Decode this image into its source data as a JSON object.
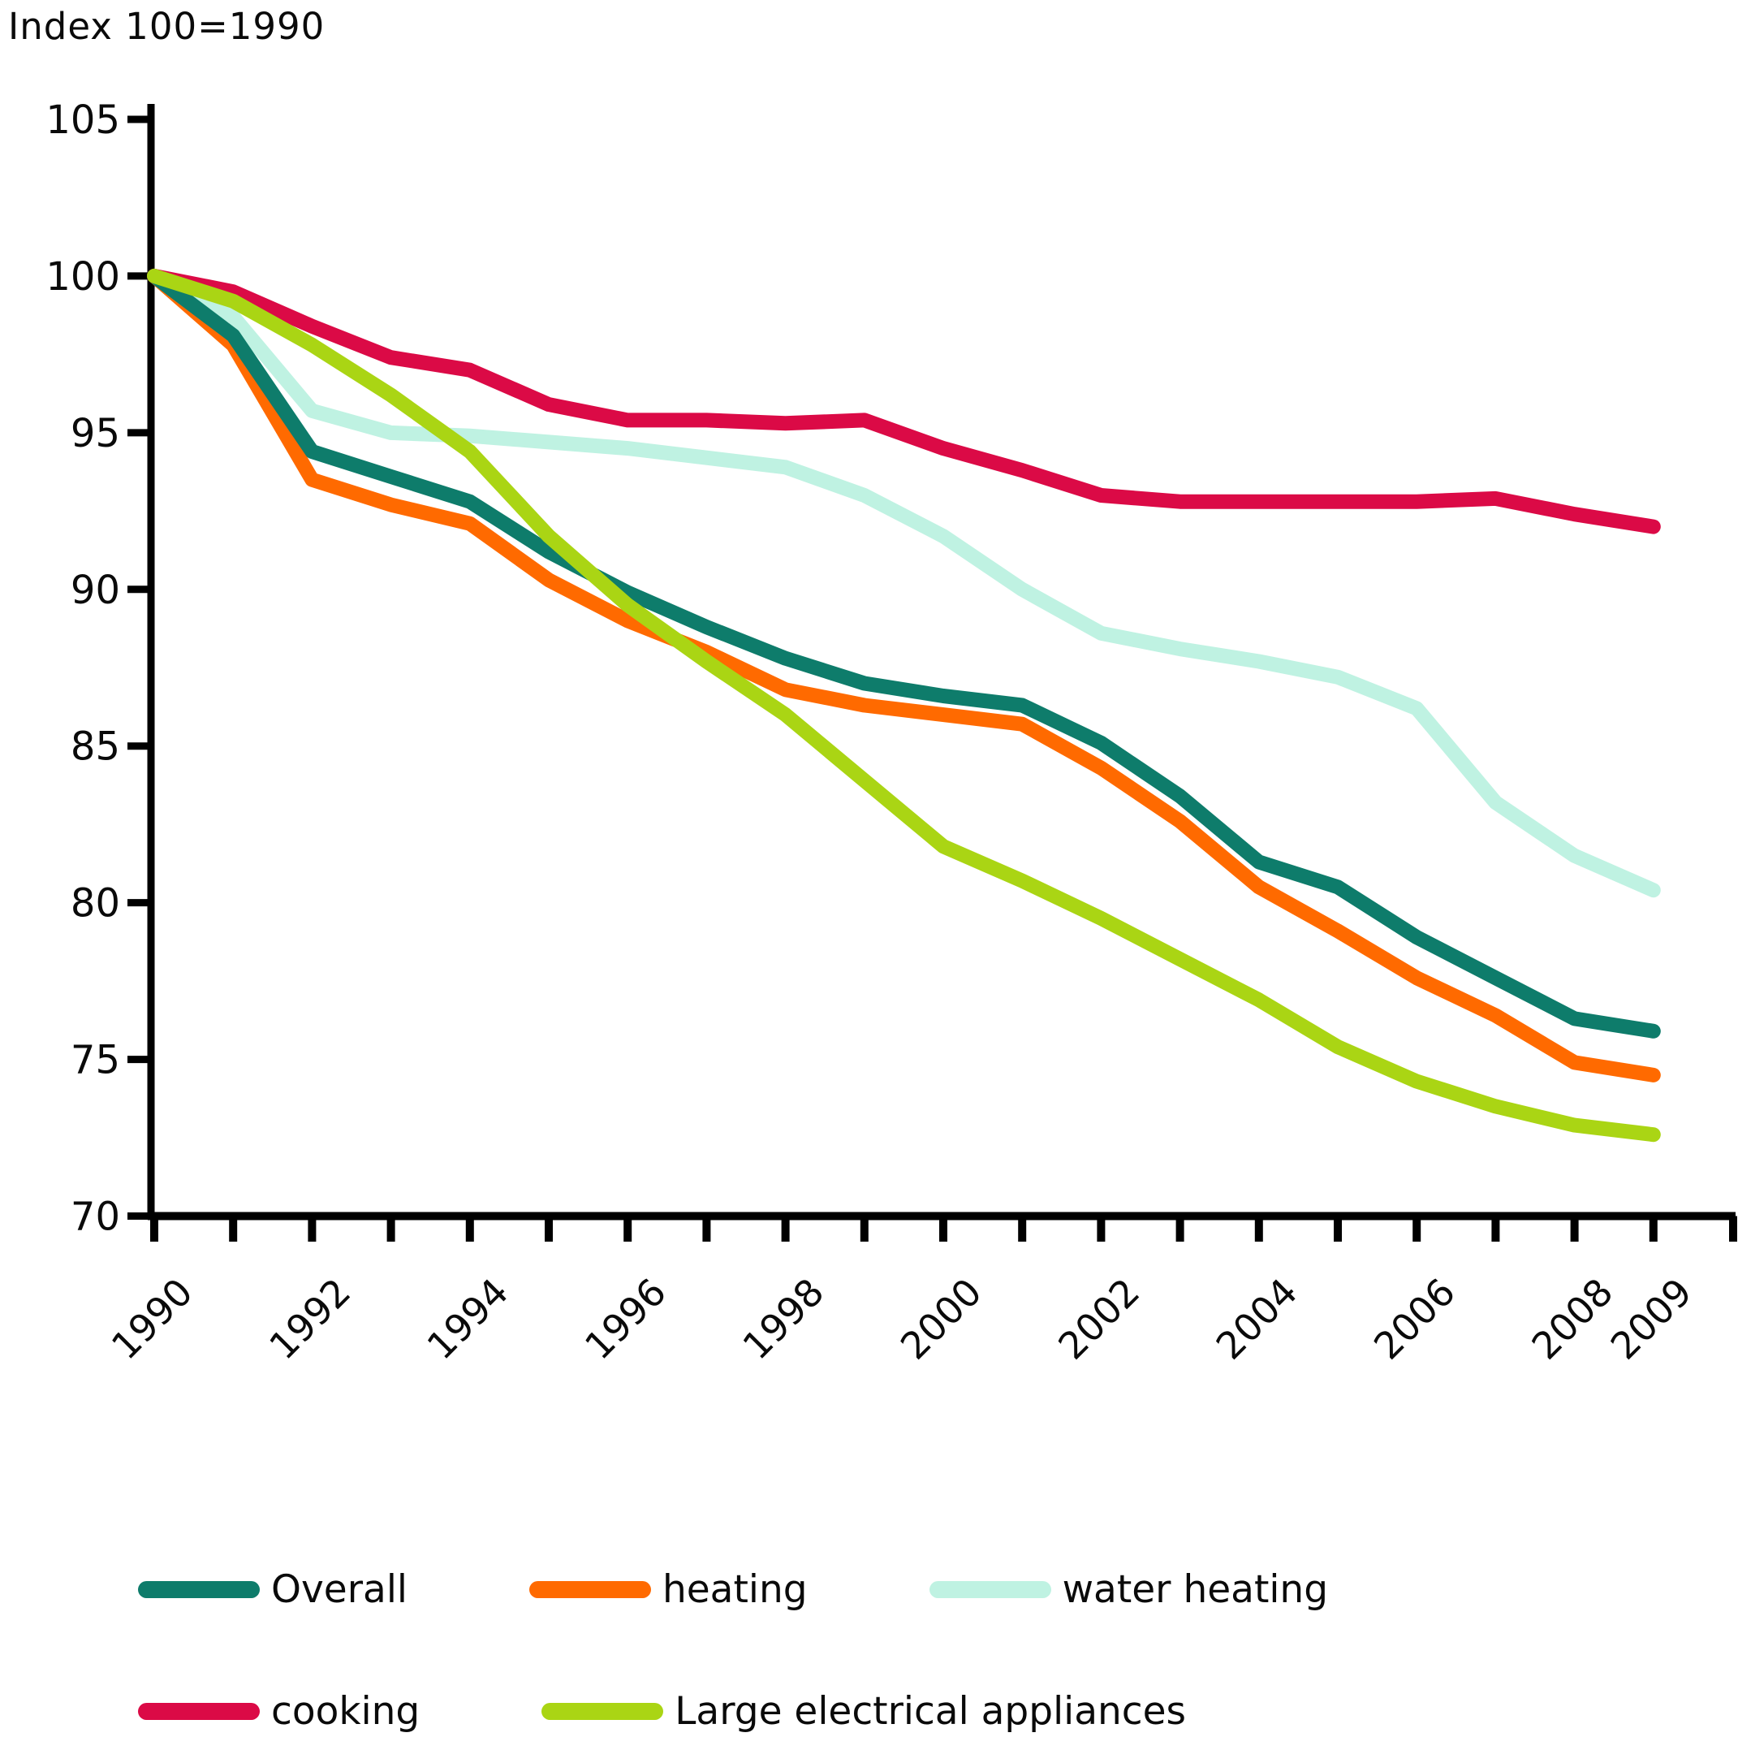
{
  "title": "Index 100=1990",
  "chart_data": {
    "type": "line",
    "title": "Index 100=1990",
    "xlabel": "",
    "ylabel": "Index 100=1990",
    "x": [
      1990,
      1991,
      1992,
      1993,
      1994,
      1995,
      1996,
      1997,
      1998,
      1999,
      2000,
      2001,
      2002,
      2003,
      2004,
      2005,
      2006,
      2007,
      2008,
      2009
    ],
    "x_tick_labels": [
      "1990",
      "1992",
      "1994",
      "1996",
      "1998",
      "2000",
      "2002",
      "2004",
      "2006",
      "2008",
      "2009"
    ],
    "ylim": [
      70,
      105
    ],
    "y_ticks": [
      70,
      75,
      80,
      85,
      90,
      95,
      100,
      105
    ],
    "grid": false,
    "legend_position": "bottom",
    "series": [
      {
        "name": "Overall",
        "color": "#0E7C6B",
        "values": [
          100,
          98.1,
          94.4,
          93.6,
          92.8,
          91.2,
          89.9,
          88.8,
          87.8,
          87.0,
          86.6,
          86.3,
          85.1,
          83.4,
          81.3,
          80.5,
          78.9,
          77.6,
          76.3,
          75.9
        ]
      },
      {
        "name": "heating",
        "color": "#FF6A00",
        "values": [
          100,
          97.8,
          93.5,
          92.7,
          92.1,
          90.3,
          89.0,
          88.0,
          86.8,
          86.3,
          86.0,
          85.7,
          84.3,
          82.6,
          80.5,
          79.1,
          77.6,
          76.4,
          74.9,
          74.5
        ]
      },
      {
        "name": "water heating",
        "color": "#BFF2E2",
        "values": [
          100,
          98.7,
          95.7,
          95.0,
          94.9,
          94.7,
          94.5,
          94.2,
          93.9,
          93.0,
          91.7,
          90.0,
          88.6,
          88.1,
          87.7,
          87.2,
          86.2,
          83.2,
          81.5,
          80.4
        ]
      },
      {
        "name": "cooking",
        "color": "#DB0A46",
        "values": [
          100,
          99.5,
          98.4,
          97.4,
          97.0,
          95.9,
          95.4,
          95.4,
          95.3,
          95.4,
          94.5,
          93.8,
          93.0,
          92.8,
          92.8,
          92.8,
          92.8,
          92.9,
          92.4,
          92.0
        ]
      },
      {
        "name": "Large electrical appliances",
        "color": "#AAD514",
        "values": [
          100,
          99.2,
          97.8,
          96.2,
          94.4,
          91.7,
          89.5,
          87.7,
          86.0,
          83.9,
          81.8,
          80.7,
          79.5,
          78.2,
          76.9,
          75.4,
          74.3,
          73.5,
          72.9,
          72.6
        ]
      }
    ],
    "draw_order": [
      2,
      1,
      0,
      3,
      4
    ],
    "line_width": 18,
    "axis_color": "#000000"
  },
  "legend": {
    "row1_indices": [
      0,
      1,
      2
    ],
    "row2_indices": [
      3,
      4
    ]
  }
}
